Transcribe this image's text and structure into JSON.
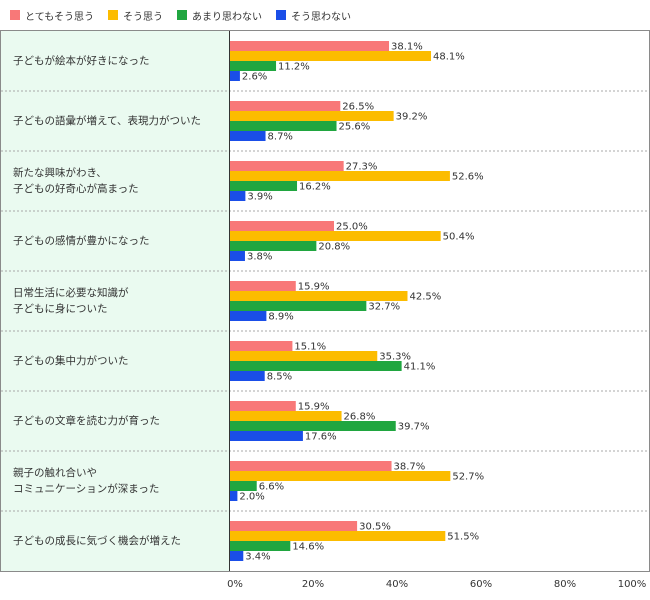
{
  "legend": [
    {
      "label": "とてもそう思う",
      "color": "#f87878"
    },
    {
      "label": "そう思う",
      "color": "#fcbc00"
    },
    {
      "label": "あまり思わない",
      "color": "#20a640"
    },
    {
      "label": "そう思わない",
      "color": "#1a4ee8"
    }
  ],
  "chart_data": {
    "type": "bar",
    "orientation": "horizontal",
    "xlim": [
      0,
      100
    ],
    "x_ticks": [
      "0%",
      "20%",
      "40%",
      "60%",
      "80%",
      "100%"
    ],
    "categories": [
      [
        "子どもが絵本が好きになった"
      ],
      [
        "子どもの語彙が増えて、表現力がついた"
      ],
      [
        "新たな興味がわき、",
        "子どもの好奇心が高まった"
      ],
      [
        "子どもの感情が豊かになった"
      ],
      [
        "日常生活に必要な知識が",
        "子どもに身についた"
      ],
      [
        "子どもの集中力がついた"
      ],
      [
        "子どもの文章を読む力が育った"
      ],
      [
        "親子の触れ合いや",
        "コミュニケーションが深まった"
      ],
      [
        "子どもの成長に気づく機会が増えた"
      ]
    ],
    "series": [
      {
        "name": "とてもそう思う",
        "values": [
          38.1,
          26.5,
          27.3,
          25.0,
          15.9,
          15.1,
          15.9,
          38.7,
          30.5
        ],
        "labels": [
          "38.1%",
          "26.5%",
          "27.3%",
          "25.0%",
          "15.9%",
          "15.1%",
          "15.9%",
          "38.7%",
          "30.5%"
        ]
      },
      {
        "name": "そう思う",
        "values": [
          48.1,
          39.2,
          52.6,
          50.4,
          42.5,
          35.3,
          26.8,
          52.7,
          51.5
        ],
        "labels": [
          "48.1%",
          "39.2%",
          "52.6%",
          "50.4%",
          "42.5%",
          "35.3%",
          "26.8%",
          "52.7%",
          "51.5%"
        ]
      },
      {
        "name": "あまり思わない",
        "values": [
          11.2,
          25.6,
          16.2,
          20.8,
          32.7,
          41.1,
          39.7,
          6.6,
          14.6
        ],
        "labels": [
          "11.2%",
          "25.6%",
          "16.2%",
          "20.8%",
          "32.7%",
          "41.1%",
          "39.7%",
          "6.6%",
          "14.6%"
        ]
      },
      {
        "name": "そう思わない",
        "values": [
          2.6,
          8.7,
          3.9,
          3.8,
          8.9,
          8.5,
          17.6,
          2.0,
          3.4
        ],
        "labels": [
          "2.6%",
          "8.7%",
          "3.9%",
          "3.8%",
          "8.9%",
          "8.5%",
          "17.6%",
          "2.0%",
          "3.4%"
        ]
      }
    ]
  }
}
